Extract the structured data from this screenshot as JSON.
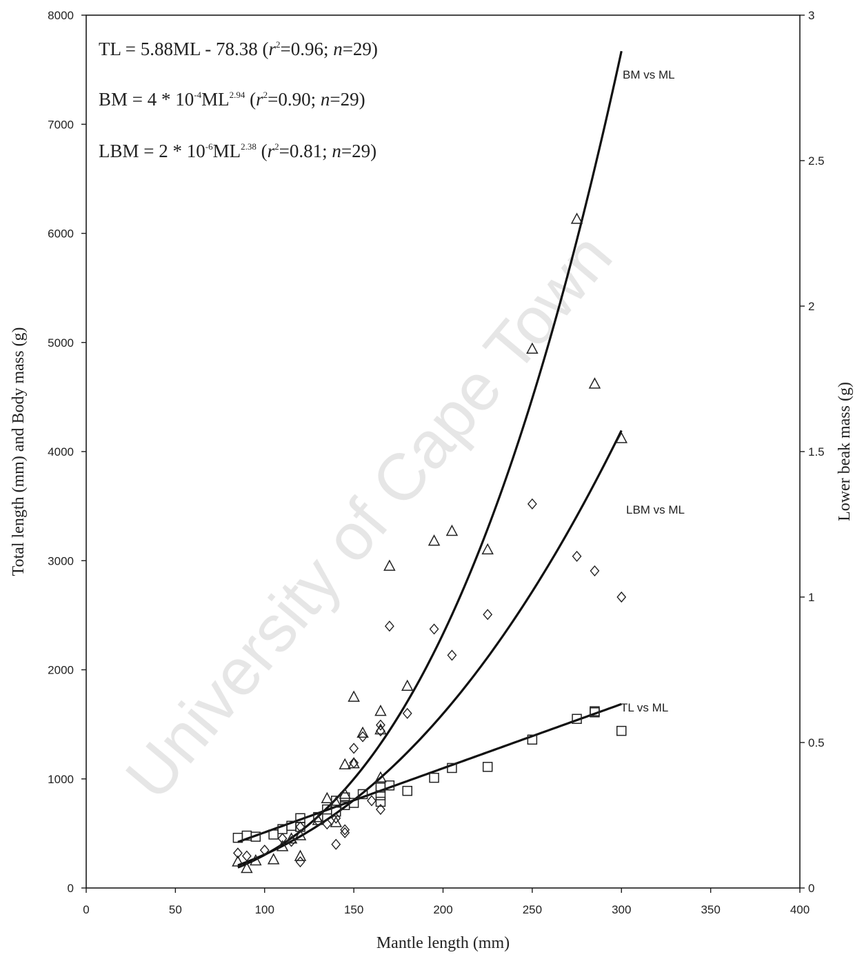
{
  "chart_data": {
    "type": "scatter",
    "xlabel": "Mantle length (mm)",
    "ylabel": "Total length (mm) and Body mass (g)",
    "y2label": "Lower beak mass (g)",
    "xlim": [
      0,
      400
    ],
    "ylim": [
      0,
      8000
    ],
    "y2lim": [
      0,
      3
    ],
    "x_ticks": [
      0,
      50,
      100,
      150,
      200,
      250,
      300,
      350,
      400
    ],
    "y_ticks": [
      0,
      1000,
      2000,
      3000,
      4000,
      5000,
      6000,
      7000,
      8000
    ],
    "y2_ticks": [
      0,
      0.5,
      1,
      1.5,
      2,
      2.5,
      3
    ],
    "grid": false,
    "watermark": "University of Cape Town",
    "equations": [
      {
        "lhs": "TL = 5.88ML - 78.38 (",
        "r": "r",
        "r_sup": "2",
        "rest": "=0.96; ",
        "n": "n",
        "n_val": "=29)"
      },
      {
        "lhs": "BM = 4 * 10",
        "exp1": "-4",
        "mid": "ML",
        "exp2": "2.94",
        "gap": "  (",
        "r": "r",
        "r_sup": "2",
        "rest": "=0.90; ",
        "n": "n",
        "n_val": "=29)"
      },
      {
        "lhs": "LBM = 2 * 10",
        "exp1": "-6",
        "mid": "ML",
        "exp2": "2.38",
        "gap": "  (",
        "r": "r",
        "r_sup": "2",
        "rest": "=0.81; ",
        "n": "n",
        "n_val": "=29)"
      }
    ],
    "series": [
      {
        "name": "TL vs ML",
        "marker": "square",
        "axis": "left",
        "fit": {
          "type": "linear",
          "slope": 5.88,
          "intercept": -78.38,
          "x_range": [
            85,
            300
          ]
        },
        "points": [
          [
            85,
            460
          ],
          [
            90,
            480
          ],
          [
            105,
            490
          ],
          [
            115,
            570
          ],
          [
            120,
            640
          ],
          [
            120,
            560
          ],
          [
            135,
            720
          ],
          [
            140,
            800
          ],
          [
            145,
            830
          ],
          [
            145,
            760
          ],
          [
            150,
            780
          ],
          [
            155,
            860
          ],
          [
            165,
            920
          ],
          [
            165,
            850
          ],
          [
            165,
            790
          ],
          [
            170,
            940
          ],
          [
            180,
            890
          ],
          [
            195,
            1010
          ],
          [
            205,
            1100
          ],
          [
            225,
            1110
          ],
          [
            250,
            1360
          ],
          [
            275,
            1550
          ],
          [
            285,
            1620
          ],
          [
            285,
            1610
          ],
          [
            300,
            1440
          ],
          [
            140,
            700
          ],
          [
            130,
            650
          ],
          [
            110,
            540
          ],
          [
            95,
            470
          ]
        ]
      },
      {
        "name": "BM vs ML",
        "marker": "triangle",
        "axis": "left",
        "fit": {
          "type": "power",
          "coef": 0.0004,
          "exponent": 2.94,
          "x_range": [
            85,
            300
          ]
        },
        "points": [
          [
            85,
            240
          ],
          [
            90,
            180
          ],
          [
            105,
            260
          ],
          [
            115,
            450
          ],
          [
            120,
            290
          ],
          [
            120,
            480
          ],
          [
            135,
            820
          ],
          [
            140,
            780
          ],
          [
            145,
            1130
          ],
          [
            145,
            860
          ],
          [
            150,
            1750
          ],
          [
            150,
            1140
          ],
          [
            155,
            1420
          ],
          [
            165,
            1620
          ],
          [
            165,
            1450
          ],
          [
            165,
            1010
          ],
          [
            170,
            2950
          ],
          [
            180,
            1850
          ],
          [
            195,
            3180
          ],
          [
            205,
            3270
          ],
          [
            225,
            3100
          ],
          [
            250,
            4940
          ],
          [
            275,
            6130
          ],
          [
            285,
            4620
          ],
          [
            300,
            4120
          ],
          [
            140,
            600
          ],
          [
            130,
            620
          ],
          [
            110,
            380
          ],
          [
            95,
            250
          ]
        ]
      },
      {
        "name": "LBM vs ML",
        "marker": "diamond",
        "axis": "right",
        "fit": {
          "type": "power",
          "coef": 2e-06,
          "exponent": 2.38,
          "x_range": [
            85,
            300
          ]
        },
        "points": [
          [
            85,
            0.12
          ],
          [
            90,
            0.11
          ],
          [
            115,
            0.16
          ],
          [
            120,
            0.09
          ],
          [
            135,
            0.22
          ],
          [
            140,
            0.24
          ],
          [
            140,
            0.15
          ],
          [
            145,
            0.2
          ],
          [
            145,
            0.19
          ],
          [
            150,
            0.48
          ],
          [
            150,
            0.43
          ],
          [
            155,
            0.52
          ],
          [
            165,
            0.56
          ],
          [
            165,
            0.54
          ],
          [
            165,
            0.27
          ],
          [
            170,
            0.9
          ],
          [
            180,
            0.6
          ],
          [
            195,
            0.89
          ],
          [
            205,
            0.8
          ],
          [
            225,
            0.94
          ],
          [
            250,
            1.32
          ],
          [
            275,
            1.14
          ],
          [
            285,
            1.09
          ],
          [
            300,
            1.0
          ],
          [
            120,
            0.21
          ],
          [
            130,
            0.23
          ],
          [
            110,
            0.17
          ],
          [
            100,
            0.13
          ],
          [
            160,
            0.3
          ]
        ]
      }
    ]
  }
}
